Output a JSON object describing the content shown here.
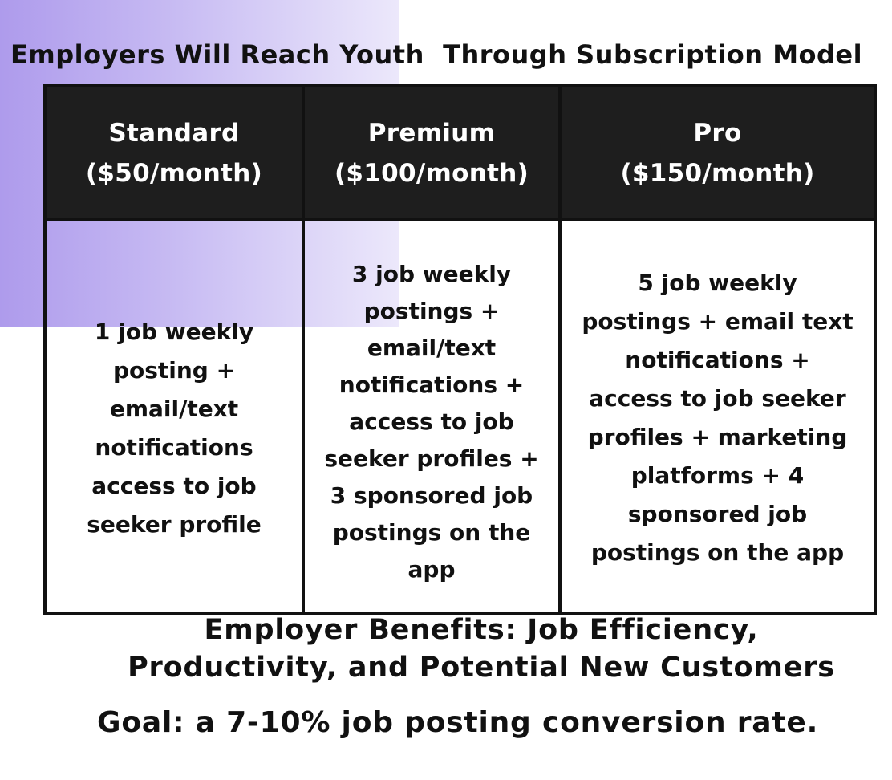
{
  "colors": {
    "accent_purple": "#ae9bec",
    "header_background": "#1e1e1e",
    "border": "#111111",
    "header_text": "#ffffff",
    "body_text": "#111111"
  },
  "title": "Employers Will Reach Youth  Through Subscription Model",
  "plans": [
    {
      "name": "Standard",
      "price": "($50/month)",
      "features": "1 job weekly\nposting +\nemail/text\nnotifications\naccess to job\nseeker profile"
    },
    {
      "name": "Premium",
      "price": "($100/month)",
      "features": "3 job weekly\npostings +\nemail/text\nnotifications +\naccess to job\nseeker profiles +\n3 sponsored job\npostings on the\napp"
    },
    {
      "name": "Pro",
      "price": "($150/month)",
      "features": "5 job weekly\npostings + email text\nnotifications +\naccess to job seeker\nprofiles + marketing\nplatforms + 4\nsponsored job\npostings on the app"
    }
  ],
  "benefits": "Employer Benefits: Job Efficiency,\nProductivity, and Potential New Customers",
  "goal": "Goal: a 7-10% job posting conversion rate."
}
